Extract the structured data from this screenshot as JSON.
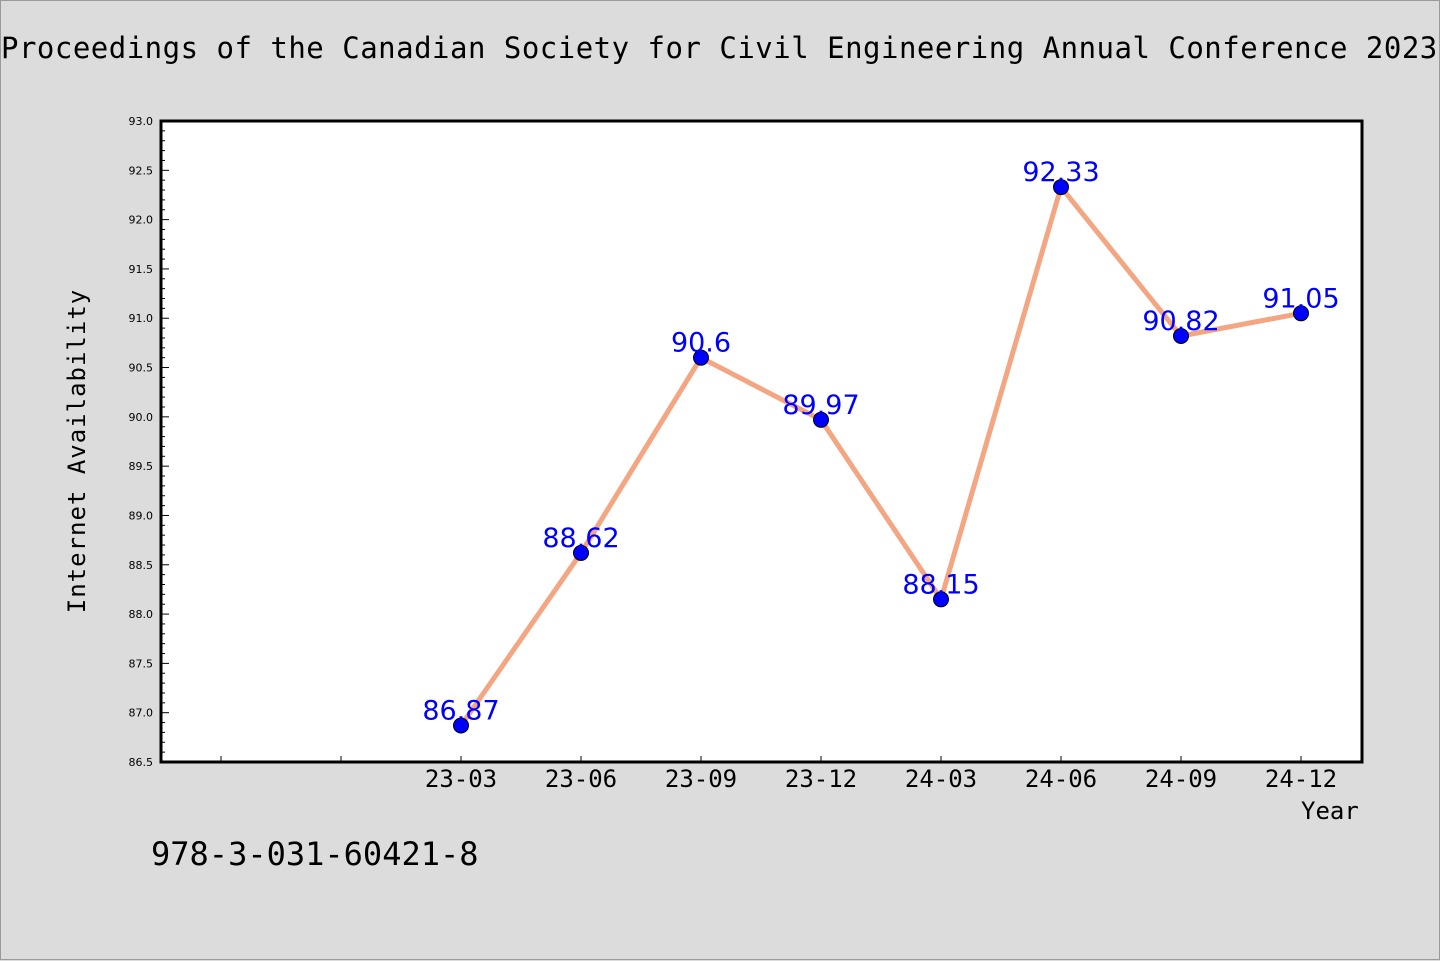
{
  "page": {
    "title": "Proceedings of the Canadian Society for Civil Engineering Annual Conference 2023",
    "isbn": "978-3-031-60421-8"
  },
  "colors": {
    "background": "#dcdcdc",
    "plot_background": "#ffffff",
    "line": "#f4a582",
    "marker": "#0000ff",
    "data_label": "#0000ff"
  },
  "chart_data": {
    "type": "line",
    "title": "",
    "xlabel": "Year",
    "ylabel": "Internet Availability",
    "ylim": [
      86.5,
      93.0
    ],
    "ytick_step": 0.5,
    "yticks": [
      "86.5",
      "87.0",
      "87.5",
      "88.0",
      "88.5",
      "89.0",
      "89.5",
      "90.0",
      "90.5",
      "91.0",
      "91.5",
      "92.0",
      "92.5",
      "93.0"
    ],
    "categories": [
      "23-03",
      "23-06",
      "23-09",
      "23-12",
      "24-03",
      "24-06",
      "24-09",
      "24-12"
    ],
    "series": [
      {
        "values": [
          86.87,
          88.62,
          90.6,
          89.97,
          88.15,
          92.33,
          90.82,
          91.05
        ],
        "labels": [
          "86.87",
          "88.62",
          "90.6",
          "89.97",
          "88.15",
          "92.33",
          "90.82",
          "91.05"
        ]
      }
    ],
    "grid": false,
    "legend": "none"
  }
}
